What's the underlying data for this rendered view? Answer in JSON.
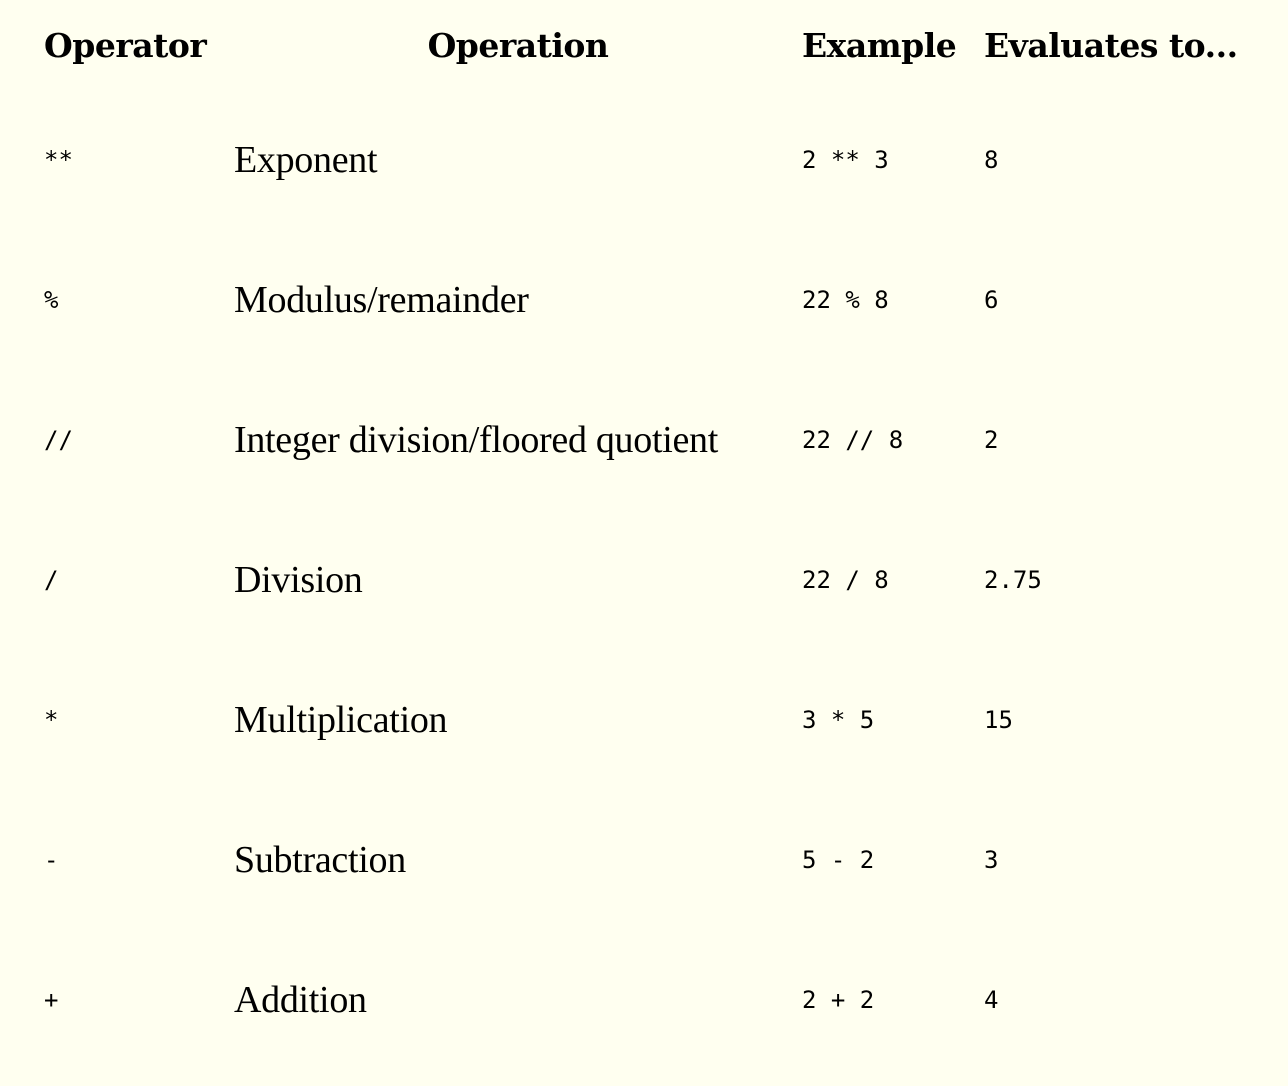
{
  "table": {
    "headers": {
      "operator": "Operator",
      "operation": "Operation",
      "example": "Example",
      "result": "Evaluates to..."
    },
    "rows": [
      {
        "operator": "**",
        "operation": "Exponent",
        "example": "2 ** 3",
        "result": "8"
      },
      {
        "operator": "%",
        "operation": "Modulus/remainder",
        "example": "22 % 8",
        "result": "6"
      },
      {
        "operator": "//",
        "operation": "Integer division/floored quotient",
        "example": "22 // 8",
        "result": "2"
      },
      {
        "operator": "/",
        "operation": "Division",
        "example": "22 / 8",
        "result": "2.75"
      },
      {
        "operator": "*",
        "operation": "Multiplication",
        "example": "3 * 5",
        "result": "15"
      },
      {
        "operator": "-",
        "operation": "Subtraction",
        "example": "5 - 2",
        "result": "3"
      },
      {
        "operator": "+",
        "operation": "Addition",
        "example": "2 + 2",
        "result": "4"
      }
    ]
  }
}
